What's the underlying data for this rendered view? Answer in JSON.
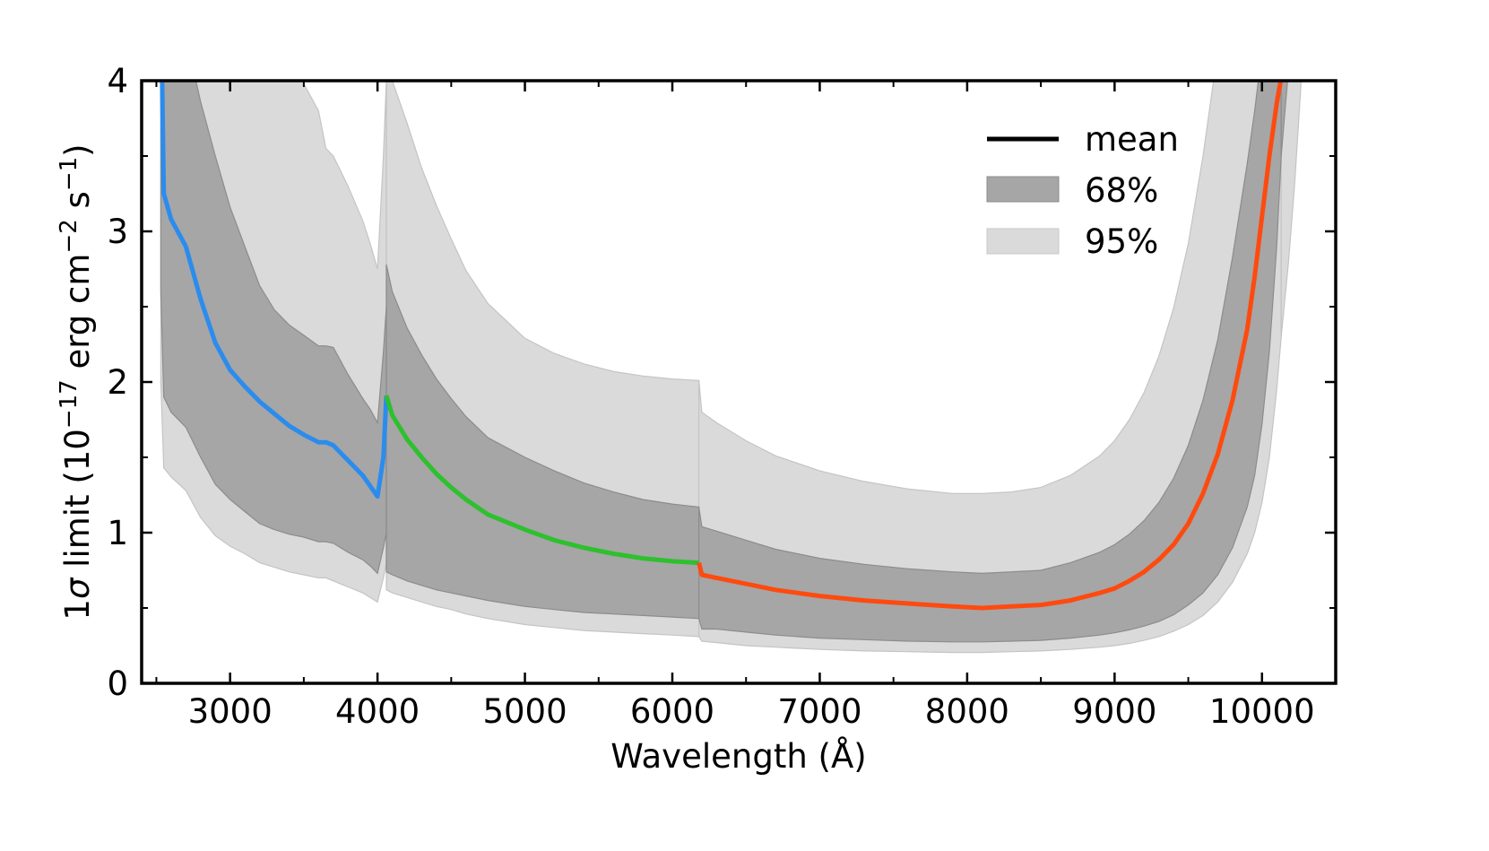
{
  "chart_data": {
    "type": "area",
    "xlabel": "Wavelength (Å)",
    "ylabel": {
      "prefix": "1",
      "sigma": "σ",
      "limit_text": " limit  (10",
      "exp1": "−17",
      "unit_mid": " erg cm",
      "exp2": "−2",
      "unit_s": " s",
      "exp3": "−1",
      "close": ")"
    },
    "xlim": [
      2400,
      10500
    ],
    "ylim": [
      0,
      4
    ],
    "xticks": [
      3000,
      4000,
      5000,
      6000,
      7000,
      8000,
      9000,
      10000
    ],
    "xtick_labels": [
      "3000",
      "4000",
      "5000",
      "6000",
      "7000",
      "8000",
      "9000",
      "10000"
    ],
    "yticks": [
      0,
      1,
      2,
      3,
      4
    ],
    "ytick_labels": [
      "0",
      "1",
      "2",
      "3",
      "4"
    ],
    "legend_position": "top-right",
    "legend": [
      {
        "label": "mean",
        "kind": "line",
        "color": "#000000"
      },
      {
        "label": "68%",
        "kind": "band",
        "color": "#a6a6a6"
      },
      {
        "label": "95%",
        "kind": "band",
        "color": "#dadada"
      }
    ],
    "colors": {
      "band68": "#a6a6a6",
      "band95": "#dadada",
      "edge": "#8c8c8c"
    },
    "segments": [
      {
        "color": "#2b8cee",
        "x": [
          2530,
          2550,
          2600,
          2700,
          2800,
          2900,
          3000,
          3100,
          3200,
          3300,
          3400,
          3500,
          3600,
          3650,
          3700,
          3800,
          3900,
          3950,
          4000,
          4040,
          4060
        ],
        "mean": [
          4.6,
          3.25,
          3.08,
          2.9,
          2.55,
          2.26,
          2.08,
          1.97,
          1.87,
          1.79,
          1.71,
          1.65,
          1.6,
          1.6,
          1.58,
          1.48,
          1.38,
          1.31,
          1.24,
          1.5,
          1.91
        ],
        "lo68": [
          2.6,
          1.9,
          1.8,
          1.7,
          1.5,
          1.32,
          1.22,
          1.14,
          1.06,
          1.02,
          0.99,
          0.97,
          0.94,
          0.94,
          0.93,
          0.87,
          0.82,
          0.78,
          0.73,
          0.9,
          1.0
        ],
        "hi68": [
          4.6,
          4.6,
          4.6,
          4.3,
          3.86,
          3.5,
          3.16,
          2.9,
          2.64,
          2.48,
          2.38,
          2.31,
          2.24,
          2.24,
          2.23,
          2.05,
          1.89,
          1.82,
          1.73,
          2.2,
          2.5
        ],
        "lo95": [
          2.0,
          1.43,
          1.37,
          1.28,
          1.1,
          0.98,
          0.91,
          0.86,
          0.8,
          0.77,
          0.74,
          0.72,
          0.7,
          0.7,
          0.68,
          0.64,
          0.6,
          0.57,
          0.54,
          0.7,
          0.8
        ],
        "hi95": [
          4.6,
          4.6,
          4.6,
          4.6,
          4.6,
          4.6,
          4.6,
          4.6,
          4.6,
          4.6,
          4.2,
          3.98,
          3.8,
          3.55,
          3.5,
          3.3,
          3.07,
          2.92,
          2.75,
          3.5,
          4.0
        ]
      },
      {
        "color": "#2ec02e",
        "x": [
          4060,
          4100,
          4200,
          4300,
          4400,
          4500,
          4600,
          4750,
          5000,
          5200,
          5400,
          5600,
          5800,
          6000,
          6180
        ],
        "mean": [
          1.91,
          1.78,
          1.62,
          1.5,
          1.39,
          1.3,
          1.22,
          1.12,
          1.02,
          0.95,
          0.9,
          0.86,
          0.83,
          0.81,
          0.8
        ],
        "lo68": [
          0.74,
          0.72,
          0.68,
          0.65,
          0.62,
          0.6,
          0.58,
          0.55,
          0.51,
          0.49,
          0.47,
          0.46,
          0.45,
          0.44,
          0.43
        ],
        "hi68": [
          2.78,
          2.6,
          2.36,
          2.18,
          2.02,
          1.89,
          1.77,
          1.63,
          1.5,
          1.41,
          1.33,
          1.27,
          1.22,
          1.19,
          1.17
        ],
        "lo95": [
          0.62,
          0.6,
          0.57,
          0.54,
          0.51,
          0.49,
          0.46,
          0.43,
          0.39,
          0.37,
          0.35,
          0.34,
          0.33,
          0.32,
          0.31
        ],
        "hi95": [
          4.0,
          4.0,
          3.72,
          3.42,
          3.17,
          2.95,
          2.74,
          2.52,
          2.29,
          2.19,
          2.12,
          2.07,
          2.04,
          2.02,
          2.01
        ]
      },
      {
        "color": "#ff4a0f",
        "x": [
          6180,
          6200,
          6300,
          6500,
          6700,
          7000,
          7300,
          7600,
          7900,
          8100,
          8300,
          8500,
          8700,
          8900,
          9000,
          9100,
          9200,
          9300,
          9400,
          9500,
          9600,
          9700,
          9800,
          9900,
          9950,
          10000,
          10050,
          10100,
          10130
        ],
        "mean": [
          0.8,
          0.72,
          0.7,
          0.66,
          0.62,
          0.58,
          0.55,
          0.53,
          0.51,
          0.5,
          0.51,
          0.52,
          0.55,
          0.6,
          0.63,
          0.68,
          0.74,
          0.82,
          0.92,
          1.06,
          1.26,
          1.52,
          1.88,
          2.35,
          2.7,
          3.1,
          3.5,
          3.85,
          4.02
        ],
        "lo68": [
          0.43,
          0.36,
          0.36,
          0.34,
          0.32,
          0.3,
          0.29,
          0.28,
          0.275,
          0.275,
          0.28,
          0.285,
          0.3,
          0.32,
          0.335,
          0.355,
          0.38,
          0.41,
          0.455,
          0.52,
          0.6,
          0.72,
          0.9,
          1.17,
          1.38,
          1.72,
          2.2,
          2.9,
          3.5
        ],
        "hi68": [
          1.17,
          1.04,
          1.01,
          0.95,
          0.89,
          0.83,
          0.79,
          0.76,
          0.74,
          0.73,
          0.74,
          0.75,
          0.8,
          0.87,
          0.92,
          0.99,
          1.08,
          1.2,
          1.36,
          1.58,
          1.88,
          2.28,
          2.83,
          3.45,
          3.8,
          4.2,
          4.6,
          4.6,
          4.6
        ],
        "lo95": [
          0.31,
          0.28,
          0.27,
          0.25,
          0.24,
          0.225,
          0.215,
          0.21,
          0.205,
          0.205,
          0.21,
          0.215,
          0.225,
          0.24,
          0.25,
          0.265,
          0.285,
          0.31,
          0.345,
          0.39,
          0.45,
          0.54,
          0.67,
          0.86,
          1.0,
          1.2,
          1.5,
          1.95,
          2.3
        ],
        "hi95": [
          2.01,
          1.8,
          1.73,
          1.61,
          1.51,
          1.41,
          1.34,
          1.29,
          1.26,
          1.26,
          1.27,
          1.3,
          1.38,
          1.51,
          1.61,
          1.75,
          1.93,
          2.17,
          2.49,
          2.92,
          3.5,
          4.2,
          4.6,
          4.6,
          4.6,
          4.6,
          4.6,
          4.6,
          4.6
        ]
      }
    ],
    "tail95": {
      "x": [
        10130,
        10180,
        10220,
        10260,
        10300
      ],
      "lo95": [
        2.3,
        2.8,
        3.3,
        3.9,
        4.6
      ],
      "hi95": [
        4.6,
        4.6,
        4.6,
        4.6,
        4.6
      ]
    },
    "tail68": {
      "x": [
        10130,
        10160,
        10200,
        10230
      ],
      "lo68": [
        3.5,
        3.85,
        4.3,
        4.6
      ],
      "hi68": [
        4.6,
        4.6,
        4.6,
        4.6
      ]
    }
  }
}
